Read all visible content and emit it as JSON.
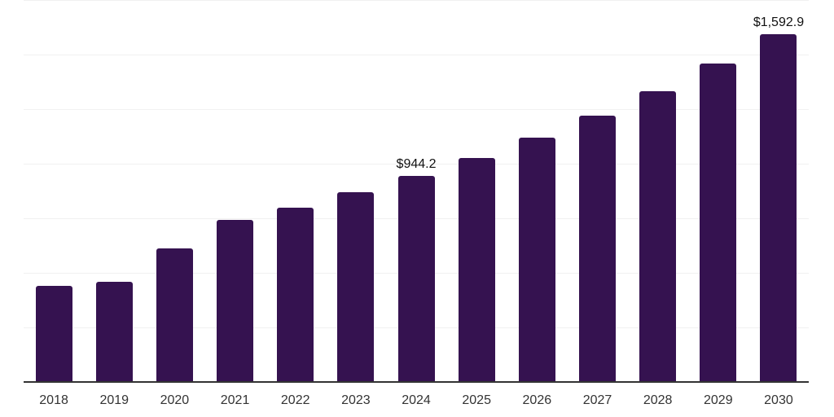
{
  "chart_data": {
    "type": "bar",
    "title": "",
    "xlabel": "",
    "ylabel": "",
    "categories": [
      "2018",
      "2019",
      "2020",
      "2021",
      "2022",
      "2023",
      "2024",
      "2025",
      "2026",
      "2027",
      "2028",
      "2029",
      "2030"
    ],
    "values": [
      440,
      458,
      612,
      744,
      800,
      868,
      944.2,
      1028,
      1120,
      1222,
      1334,
      1458,
      1592.9
    ],
    "point_labels": [
      "",
      "",
      "",
      "",
      "",
      "",
      "$944.2",
      "",
      "",
      "",
      "",
      "",
      "$1,592.9"
    ],
    "ylim": [
      0,
      1750
    ],
    "grid_interval": 250,
    "grid_on": true,
    "y_axis_labels_visible": false,
    "legend": "none",
    "colors": {
      "bar": "#351250",
      "gridline": "#f1f1f1",
      "axis_line": "#333333",
      "tick_label": "#333333",
      "value_label": "#111111",
      "background": "#ffffff"
    }
  }
}
